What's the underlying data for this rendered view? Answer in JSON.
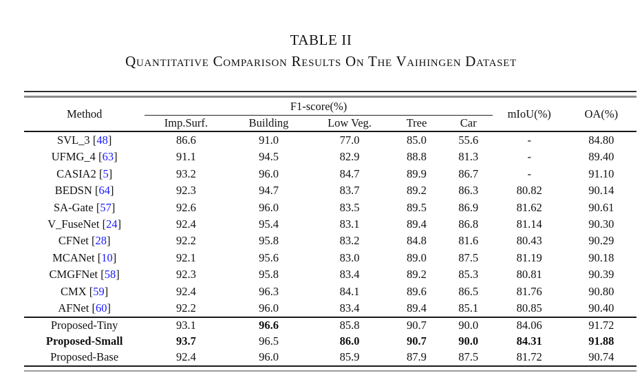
{
  "caption": {
    "number": "TABLE II",
    "title": "Quantitative Comparison Results On The Vaihingen Dataset"
  },
  "colors": {
    "citation": "#1a1aff",
    "text": "#111111"
  },
  "table": {
    "method_header": "Method",
    "span_header": "F1-score(%)",
    "sub_columns": [
      "Imp.Surf.",
      "Building",
      "Low Veg.",
      "Tree",
      "Car"
    ],
    "right_columns": [
      "mIoU(%)",
      "OA(%)"
    ],
    "groups": [
      {
        "name": "baselines",
        "rows": [
          {
            "method": "SVL_3",
            "cite": "48",
            "values": [
              "86.6",
              "91.0",
              "77.0",
              "85.0",
              "55.6",
              "-",
              "84.80"
            ]
          },
          {
            "method": "UFMG_4",
            "cite": "63",
            "values": [
              "91.1",
              "94.5",
              "82.9",
              "88.8",
              "81.3",
              "-",
              "89.40"
            ]
          },
          {
            "method": "CASIA2",
            "cite": "5",
            "values": [
              "93.2",
              "96.0",
              "84.7",
              "89.9",
              "86.7",
              "-",
              "91.10"
            ]
          },
          {
            "method": "BEDSN",
            "cite": "64",
            "values": [
              "92.3",
              "94.7",
              "83.7",
              "89.2",
              "86.3",
              "80.82",
              "90.14"
            ]
          },
          {
            "method": "SA-Gate",
            "cite": "57",
            "values": [
              "92.6",
              "96.0",
              "83.5",
              "89.5",
              "86.9",
              "81.62",
              "90.61"
            ]
          },
          {
            "method": "V_FuseNet",
            "cite": "24",
            "values": [
              "92.4",
              "95.4",
              "83.1",
              "89.4",
              "86.8",
              "81.14",
              "90.30"
            ]
          },
          {
            "method": "CFNet",
            "cite": "28",
            "values": [
              "92.2",
              "95.8",
              "83.2",
              "84.8",
              "81.6",
              "80.43",
              "90.29"
            ]
          },
          {
            "method": "MCANet",
            "cite": "10",
            "values": [
              "92.1",
              "95.6",
              "83.0",
              "89.0",
              "87.5",
              "81.19",
              "90.18"
            ]
          },
          {
            "method": "CMGFNet",
            "cite": "58",
            "values": [
              "92.3",
              "95.8",
              "83.4",
              "89.2",
              "85.3",
              "80.81",
              "90.39"
            ]
          },
          {
            "method": "CMX",
            "cite": "59",
            "values": [
              "92.4",
              "96.3",
              "84.1",
              "89.6",
              "86.5",
              "81.76",
              "90.80"
            ]
          },
          {
            "method": "AFNet",
            "cite": "60",
            "values": [
              "92.2",
              "96.0",
              "83.4",
              "89.4",
              "85.1",
              "80.85",
              "90.40"
            ]
          }
        ]
      },
      {
        "name": "proposed",
        "rows": [
          {
            "method": "Proposed-Tiny",
            "method_bold": false,
            "values": [
              "93.1",
              "96.6",
              "85.8",
              "90.7",
              "90.0",
              "84.06",
              "91.72"
            ],
            "bold": [
              false,
              true,
              false,
              false,
              false,
              false,
              false
            ]
          },
          {
            "method": "Proposed-Small",
            "method_bold": true,
            "values": [
              "93.7",
              "96.5",
              "86.0",
              "90.7",
              "90.0",
              "84.31",
              "91.88"
            ],
            "bold": [
              true,
              false,
              true,
              true,
              true,
              true,
              true
            ]
          },
          {
            "method": "Proposed-Base",
            "method_bold": false,
            "values": [
              "92.4",
              "96.0",
              "85.9",
              "87.9",
              "87.5",
              "81.72",
              "90.74"
            ],
            "bold": [
              false,
              false,
              false,
              false,
              false,
              false,
              false
            ]
          }
        ]
      }
    ]
  }
}
